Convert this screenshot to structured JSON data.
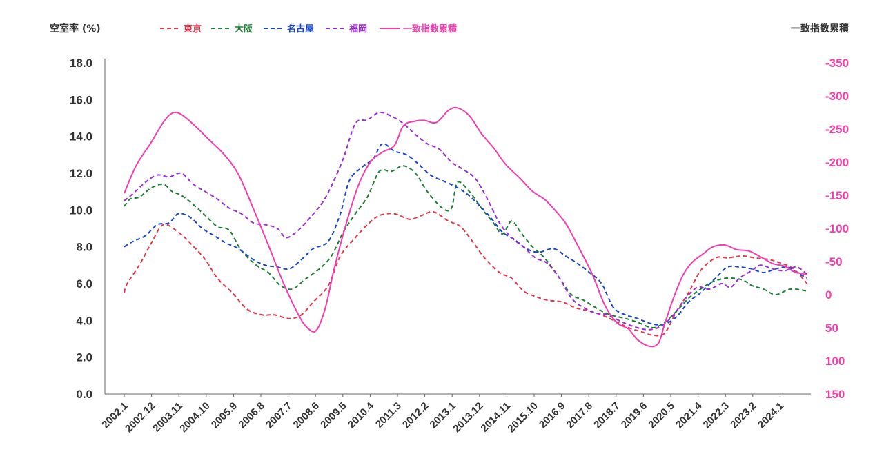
{
  "chart_data": {
    "type": "line",
    "ylabel_left": "空室率 (%)",
    "ylabel_right": "一致指数累積",
    "y_left": {
      "ticks": [
        "0.0",
        "2.0",
        "4.0",
        "6.0",
        "8.0",
        "10.0",
        "12.0",
        "14.0",
        "16.0",
        "18.0"
      ],
      "ylim": [
        0,
        18
      ]
    },
    "y_right": {
      "ticks": [
        "150",
        "100",
        "50",
        "0",
        "-50",
        "-100",
        "-150",
        "-200",
        "-250",
        "-300",
        "-350"
      ],
      "ylim": [
        150,
        -350
      ],
      "inverted": true
    },
    "x_tick_labels": [
      "2002.1",
      "2002.12",
      "2003.11",
      "2004.10",
      "2005.9",
      "2006.8",
      "2007.7",
      "2008.6",
      "2009.5",
      "2010.4",
      "2011.3",
      "2012.2",
      "2013.1",
      "2013.12",
      "2014.11",
      "2015.10",
      "2016.9",
      "2017.8",
      "2018.7",
      "2019.6",
      "2020.5",
      "2021.4",
      "2022.3",
      "2023.2",
      "2024.1"
    ],
    "x_start": "2002.1",
    "x_end": "2024.10",
    "grid": false,
    "legend_position": "top",
    "series": [
      {
        "name": "東京",
        "axis": "left",
        "style": "dashed",
        "color": "#e0374a",
        "points": [
          [
            2002.0,
            5.5
          ],
          [
            2002.1,
            6.0
          ],
          [
            2002.5,
            7.0
          ],
          [
            2002.9,
            8.2
          ],
          [
            2003.3,
            9.2
          ],
          [
            2003.8,
            8.8
          ],
          [
            2004.2,
            8.2
          ],
          [
            2004.7,
            7.3
          ],
          [
            2005.1,
            6.3
          ],
          [
            2005.6,
            5.5
          ],
          [
            2006.1,
            4.6
          ],
          [
            2006.6,
            4.3
          ],
          [
            2007.0,
            4.3
          ],
          [
            2007.5,
            4.1
          ],
          [
            2007.9,
            4.3
          ],
          [
            2008.3,
            5.0
          ],
          [
            2008.8,
            5.9
          ],
          [
            2009.2,
            7.5
          ],
          [
            2009.7,
            8.5
          ],
          [
            2010.1,
            9.2
          ],
          [
            2010.5,
            9.7
          ],
          [
            2011.0,
            9.8
          ],
          [
            2011.5,
            9.5
          ],
          [
            2011.9,
            9.7
          ],
          [
            2012.3,
            9.9
          ],
          [
            2012.8,
            9.4
          ],
          [
            2013.2,
            9.1
          ],
          [
            2013.6,
            8.3
          ],
          [
            2014.0,
            7.4
          ],
          [
            2014.5,
            6.6
          ],
          [
            2014.9,
            6.3
          ],
          [
            2015.3,
            5.6
          ],
          [
            2015.7,
            5.3
          ],
          [
            2016.1,
            5.1
          ],
          [
            2016.6,
            5.0
          ],
          [
            2017.0,
            4.7
          ],
          [
            2017.5,
            4.5
          ],
          [
            2017.9,
            4.3
          ],
          [
            2018.3,
            4.0
          ],
          [
            2018.8,
            3.6
          ],
          [
            2019.2,
            3.4
          ],
          [
            2019.6,
            3.2
          ],
          [
            2020.0,
            3.3
          ],
          [
            2020.4,
            4.5
          ],
          [
            2020.8,
            5.5
          ],
          [
            2021.2,
            6.7
          ],
          [
            2021.7,
            7.4
          ],
          [
            2022.1,
            7.4
          ],
          [
            2022.6,
            7.5
          ],
          [
            2023.0,
            7.4
          ],
          [
            2023.5,
            7.3
          ],
          [
            2023.9,
            7.1
          ],
          [
            2024.3,
            6.8
          ],
          [
            2024.75,
            6.0
          ]
        ]
      },
      {
        "name": "大阪",
        "axis": "left",
        "style": "dashed",
        "color": "#1e7e34",
        "points": [
          [
            2002.0,
            10.2
          ],
          [
            2002.2,
            10.6
          ],
          [
            2002.5,
            10.7
          ],
          [
            2002.9,
            11.2
          ],
          [
            2003.3,
            11.4
          ],
          [
            2003.6,
            11.0
          ],
          [
            2003.9,
            10.8
          ],
          [
            2004.3,
            10.3
          ],
          [
            2004.7,
            9.7
          ],
          [
            2005.1,
            9.1
          ],
          [
            2005.5,
            8.9
          ],
          [
            2005.9,
            7.8
          ],
          [
            2006.4,
            7.0
          ],
          [
            2006.8,
            6.6
          ],
          [
            2007.2,
            5.9
          ],
          [
            2007.6,
            5.7
          ],
          [
            2008.0,
            6.2
          ],
          [
            2008.5,
            6.8
          ],
          [
            2008.9,
            7.5
          ],
          [
            2009.3,
            8.8
          ],
          [
            2009.7,
            9.8
          ],
          [
            2010.1,
            10.7
          ],
          [
            2010.5,
            12.1
          ],
          [
            2010.9,
            12.1
          ],
          [
            2011.3,
            12.4
          ],
          [
            2011.7,
            12.0
          ],
          [
            2012.1,
            11.0
          ],
          [
            2012.6,
            10.1
          ],
          [
            2012.9,
            10.1
          ],
          [
            2013.1,
            11.5
          ],
          [
            2013.5,
            11.0
          ],
          [
            2013.9,
            10.1
          ],
          [
            2014.3,
            9.3
          ],
          [
            2014.6,
            8.7
          ],
          [
            2014.9,
            9.4
          ],
          [
            2015.2,
            8.8
          ],
          [
            2015.6,
            8.0
          ],
          [
            2016.0,
            7.4
          ],
          [
            2016.5,
            6.3
          ],
          [
            2016.9,
            5.4
          ],
          [
            2017.3,
            5.1
          ],
          [
            2017.8,
            4.6
          ],
          [
            2018.2,
            4.3
          ],
          [
            2018.7,
            4.1
          ],
          [
            2019.1,
            3.9
          ],
          [
            2019.6,
            3.6
          ],
          [
            2020.0,
            3.9
          ],
          [
            2020.4,
            4.5
          ],
          [
            2020.8,
            5.2
          ],
          [
            2021.2,
            5.7
          ],
          [
            2021.6,
            6.1
          ],
          [
            2022.1,
            6.3
          ],
          [
            2022.6,
            6.2
          ],
          [
            2022.9,
            5.9
          ],
          [
            2023.3,
            5.7
          ],
          [
            2023.7,
            5.4
          ],
          [
            2024.2,
            5.7
          ],
          [
            2024.75,
            5.6
          ]
        ]
      },
      {
        "name": "名古屋",
        "axis": "left",
        "style": "dashed",
        "color": "#1747c8",
        "points": [
          [
            2002.0,
            8.0
          ],
          [
            2002.3,
            8.3
          ],
          [
            2002.7,
            8.6
          ],
          [
            2003.1,
            9.2
          ],
          [
            2003.5,
            9.3
          ],
          [
            2003.8,
            9.8
          ],
          [
            2004.2,
            9.6
          ],
          [
            2004.6,
            9.0
          ],
          [
            2005.0,
            8.6
          ],
          [
            2005.4,
            8.2
          ],
          [
            2005.8,
            7.9
          ],
          [
            2006.3,
            7.3
          ],
          [
            2006.7,
            7.0
          ],
          [
            2007.1,
            6.9
          ],
          [
            2007.5,
            6.8
          ],
          [
            2007.9,
            7.3
          ],
          [
            2008.3,
            7.9
          ],
          [
            2008.8,
            8.3
          ],
          [
            2009.2,
            9.8
          ],
          [
            2009.5,
            11.6
          ],
          [
            2009.9,
            12.3
          ],
          [
            2010.3,
            12.8
          ],
          [
            2010.6,
            13.6
          ],
          [
            2011.0,
            13.2
          ],
          [
            2011.4,
            13.0
          ],
          [
            2011.8,
            12.5
          ],
          [
            2012.2,
            11.9
          ],
          [
            2012.6,
            11.6
          ],
          [
            2013.0,
            11.3
          ],
          [
            2013.4,
            10.9
          ],
          [
            2013.8,
            10.3
          ],
          [
            2014.2,
            9.6
          ],
          [
            2014.6,
            8.8
          ],
          [
            2015.0,
            8.4
          ],
          [
            2015.4,
            7.9
          ],
          [
            2015.8,
            7.7
          ],
          [
            2016.3,
            7.9
          ],
          [
            2016.7,
            7.5
          ],
          [
            2017.1,
            7.1
          ],
          [
            2017.5,
            6.6
          ],
          [
            2017.9,
            6.0
          ],
          [
            2018.3,
            4.7
          ],
          [
            2018.7,
            4.3
          ],
          [
            2019.1,
            4.1
          ],
          [
            2019.6,
            3.8
          ],
          [
            2020.0,
            3.8
          ],
          [
            2020.4,
            4.2
          ],
          [
            2020.8,
            5.0
          ],
          [
            2021.2,
            5.5
          ],
          [
            2021.7,
            6.3
          ],
          [
            2022.1,
            6.9
          ],
          [
            2022.5,
            6.9
          ],
          [
            2022.9,
            6.8
          ],
          [
            2023.3,
            6.6
          ],
          [
            2023.7,
            6.8
          ],
          [
            2024.1,
            6.9
          ],
          [
            2024.4,
            6.6
          ],
          [
            2024.75,
            6.3
          ]
        ]
      },
      {
        "name": "福岡",
        "axis": "left",
        "style": "dashed",
        "color": "#9a2bd6",
        "points": [
          [
            2002.0,
            10.5
          ],
          [
            2002.3,
            10.9
          ],
          [
            2002.7,
            11.5
          ],
          [
            2003.1,
            11.9
          ],
          [
            2003.5,
            11.8
          ],
          [
            2003.9,
            12.0
          ],
          [
            2004.3,
            11.4
          ],
          [
            2004.7,
            11.0
          ],
          [
            2005.1,
            10.6
          ],
          [
            2005.5,
            10.1
          ],
          [
            2005.9,
            9.8
          ],
          [
            2006.3,
            9.3
          ],
          [
            2006.7,
            9.2
          ],
          [
            2007.1,
            9.0
          ],
          [
            2007.4,
            8.5
          ],
          [
            2007.8,
            8.9
          ],
          [
            2008.2,
            9.6
          ],
          [
            2008.6,
            10.4
          ],
          [
            2008.9,
            11.3
          ],
          [
            2009.3,
            12.8
          ],
          [
            2009.7,
            14.7
          ],
          [
            2010.1,
            14.9
          ],
          [
            2010.5,
            15.3
          ],
          [
            2010.9,
            15.1
          ],
          [
            2011.3,
            14.7
          ],
          [
            2011.7,
            14.1
          ],
          [
            2012.1,
            13.6
          ],
          [
            2012.5,
            13.3
          ],
          [
            2012.9,
            12.6
          ],
          [
            2013.3,
            12.2
          ],
          [
            2013.7,
            11.7
          ],
          [
            2014.1,
            10.6
          ],
          [
            2014.5,
            9.3
          ],
          [
            2014.9,
            8.5
          ],
          [
            2015.3,
            8.0
          ],
          [
            2015.7,
            7.4
          ],
          [
            2016.1,
            7.1
          ],
          [
            2016.5,
            6.3
          ],
          [
            2016.9,
            5.2
          ],
          [
            2017.3,
            4.7
          ],
          [
            2017.7,
            4.4
          ],
          [
            2018.1,
            4.3
          ],
          [
            2018.6,
            3.9
          ],
          [
            2019.1,
            3.6
          ],
          [
            2019.5,
            3.5
          ],
          [
            2019.9,
            3.7
          ],
          [
            2020.3,
            4.3
          ],
          [
            2020.7,
            5.2
          ],
          [
            2021.1,
            5.8
          ],
          [
            2021.5,
            5.7
          ],
          [
            2021.9,
            6.0
          ],
          [
            2022.2,
            5.8
          ],
          [
            2022.5,
            6.3
          ],
          [
            2022.9,
            6.7
          ],
          [
            2023.2,
            7.0
          ],
          [
            2023.6,
            6.8
          ],
          [
            2024.0,
            6.7
          ],
          [
            2024.4,
            6.9
          ],
          [
            2024.75,
            6.5
          ]
        ]
      },
      {
        "name": "一致指数累積",
        "axis": "right",
        "style": "solid",
        "color": "#f23dae",
        "points": [
          [
            2002.0,
            -153
          ],
          [
            2002.4,
            -195
          ],
          [
            2002.9,
            -230
          ],
          [
            2003.3,
            -260
          ],
          [
            2003.6,
            -274
          ],
          [
            2003.9,
            -272
          ],
          [
            2004.4,
            -253
          ],
          [
            2004.8,
            -235
          ],
          [
            2005.3,
            -213
          ],
          [
            2005.8,
            -182
          ],
          [
            2006.3,
            -130
          ],
          [
            2006.8,
            -75
          ],
          [
            2007.3,
            -18
          ],
          [
            2007.8,
            30
          ],
          [
            2008.1,
            50
          ],
          [
            2008.4,
            54
          ],
          [
            2008.7,
            20
          ],
          [
            2009.0,
            -40
          ],
          [
            2009.4,
            -108
          ],
          [
            2009.8,
            -165
          ],
          [
            2010.2,
            -200
          ],
          [
            2010.6,
            -215
          ],
          [
            2011.0,
            -225
          ],
          [
            2011.3,
            -255
          ],
          [
            2011.7,
            -262
          ],
          [
            2012.0,
            -263
          ],
          [
            2012.4,
            -260
          ],
          [
            2012.8,
            -278
          ],
          [
            2013.1,
            -282
          ],
          [
            2013.5,
            -270
          ],
          [
            2013.9,
            -243
          ],
          [
            2014.3,
            -222
          ],
          [
            2014.7,
            -197
          ],
          [
            2015.2,
            -175
          ],
          [
            2015.6,
            -156
          ],
          [
            2016.0,
            -144
          ],
          [
            2016.3,
            -130
          ],
          [
            2016.7,
            -108
          ],
          [
            2017.1,
            -75
          ],
          [
            2017.6,
            -30
          ],
          [
            2018.0,
            15
          ],
          [
            2018.4,
            42
          ],
          [
            2018.8,
            52
          ],
          [
            2019.1,
            68
          ],
          [
            2019.5,
            78
          ],
          [
            2019.8,
            73
          ],
          [
            2020.0,
            45
          ],
          [
            2020.3,
            5
          ],
          [
            2020.6,
            -28
          ],
          [
            2020.9,
            -48
          ],
          [
            2021.3,
            -62
          ],
          [
            2021.6,
            -72
          ],
          [
            2022.0,
            -75
          ],
          [
            2022.4,
            -68
          ],
          [
            2022.8,
            -66
          ],
          [
            2023.2,
            -57
          ],
          [
            2023.6,
            -47
          ],
          [
            2024.0,
            -43
          ],
          [
            2024.3,
            -35
          ],
          [
            2024.75,
            -30
          ]
        ]
      }
    ]
  }
}
